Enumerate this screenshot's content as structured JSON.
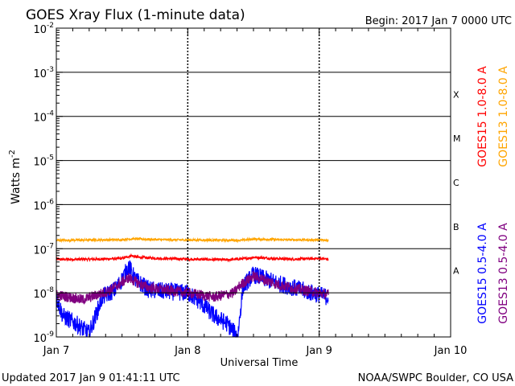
{
  "chart_data": {
    "type": "line",
    "title": "GOES Xray Flux (1-minute data)",
    "begin_label": "Begin:  2017 Jan 7 0000 UTC",
    "xlabel": "Universal Time",
    "ylabel": "Watts m",
    "ylabel_exp": "-2",
    "yscale": "log",
    "ylim_exp": [
      -9,
      -2
    ],
    "xlim_days": [
      0,
      3
    ],
    "x_ticks": [
      {
        "day": 0,
        "label": "Jan 7"
      },
      {
        "day": 1,
        "label": "Jan 8"
      },
      {
        "day": 2,
        "label": "Jan 9"
      },
      {
        "day": 3,
        "label": "Jan 10"
      }
    ],
    "y_ticks": [
      {
        "exp": -2,
        "label": "10",
        "sup": "-2"
      },
      {
        "exp": -3,
        "label": "10",
        "sup": "-3"
      },
      {
        "exp": -4,
        "label": "10",
        "sup": "-4"
      },
      {
        "exp": -5,
        "label": "10",
        "sup": "-5"
      },
      {
        "exp": -6,
        "label": "10",
        "sup": "-6"
      },
      {
        "exp": -7,
        "label": "10",
        "sup": "-7"
      },
      {
        "exp": -8,
        "label": "10",
        "sup": "-8"
      },
      {
        "exp": -9,
        "label": "10",
        "sup": "-9"
      }
    ],
    "flare_classes": [
      {
        "label": "X",
        "exp": -3.5
      },
      {
        "label": "M",
        "exp": -4.5
      },
      {
        "label": "C",
        "exp": -5.5
      },
      {
        "label": "B",
        "exp": -6.5
      },
      {
        "label": "A",
        "exp": -7.5
      }
    ],
    "series": [
      {
        "name": "GOES15 1.0-8.0 A",
        "color": "#ff0000",
        "noise": 0.03,
        "points": [
          [
            0,
            5.7e-08
          ],
          [
            0.3,
            5.8e-08
          ],
          [
            0.5,
            6e-08
          ],
          [
            0.57,
            7e-08
          ],
          [
            0.62,
            6.4e-08
          ],
          [
            0.8,
            6e-08
          ],
          [
            1.0,
            5.8e-08
          ],
          [
            1.3,
            5.6e-08
          ],
          [
            1.45,
            6e-08
          ],
          [
            1.5,
            6.4e-08
          ],
          [
            1.65,
            6e-08
          ],
          [
            1.8,
            5.8e-08
          ],
          [
            2.0,
            6e-08
          ],
          [
            2.07,
            5.8e-08
          ]
        ]
      },
      {
        "name": "GOES13 1.0-8.0 A",
        "color": "#ffa500",
        "noise": 0.025,
        "points": [
          [
            0,
            1.55e-07
          ],
          [
            0.5,
            1.6e-07
          ],
          [
            0.58,
            1.68e-07
          ],
          [
            0.8,
            1.6e-07
          ],
          [
            1.0,
            1.58e-07
          ],
          [
            1.4,
            1.55e-07
          ],
          [
            1.5,
            1.65e-07
          ],
          [
            1.7,
            1.6e-07
          ],
          [
            2.0,
            1.58e-07
          ],
          [
            2.07,
            1.55e-07
          ]
        ]
      },
      {
        "name": "GOES15 0.5-4.0 A",
        "color": "#0000ff",
        "noise": 0.2,
        "points": [
          [
            0,
            8e-09
          ],
          [
            0.05,
            3e-09
          ],
          [
            0.15,
            2e-09
          ],
          [
            0.25,
            1.2e-09
          ],
          [
            0.35,
            8e-09
          ],
          [
            0.45,
            1.2e-08
          ],
          [
            0.5,
            2e-08
          ],
          [
            0.55,
            4e-08
          ],
          [
            0.6,
            2e-08
          ],
          [
            0.7,
            1.2e-08
          ],
          [
            0.8,
            1.1e-08
          ],
          [
            1.0,
            1e-08
          ],
          [
            1.1,
            6e-09
          ],
          [
            1.2,
            3e-09
          ],
          [
            1.3,
            2e-09
          ],
          [
            1.38,
            1e-09
          ],
          [
            1.42,
            1.4e-08
          ],
          [
            1.5,
            2.6e-08
          ],
          [
            1.6,
            2e-08
          ],
          [
            1.7,
            1.6e-08
          ],
          [
            1.85,
            1.2e-08
          ],
          [
            2.0,
            9e-09
          ],
          [
            2.07,
            8e-09
          ]
        ]
      },
      {
        "name": "GOES13 0.5-4.0 A",
        "color": "#800080",
        "noise": 0.12,
        "points": [
          [
            0,
            9e-09
          ],
          [
            0.2,
            7e-09
          ],
          [
            0.4,
            1.1e-08
          ],
          [
            0.55,
            2.2e-08
          ],
          [
            0.6,
            1.8e-08
          ],
          [
            0.7,
            1.3e-08
          ],
          [
            1.0,
            1e-08
          ],
          [
            1.2,
            8e-09
          ],
          [
            1.35,
            1e-08
          ],
          [
            1.4,
            1.5e-08
          ],
          [
            1.5,
            2.4e-08
          ],
          [
            1.6,
            1.9e-08
          ],
          [
            1.7,
            1.5e-08
          ],
          [
            1.85,
            1.2e-08
          ],
          [
            2.0,
            1e-08
          ],
          [
            2.07,
            9e-09
          ]
        ]
      }
    ],
    "legend": [
      {
        "label": "GOES15 1.0-8.0 A",
        "color": "#ff0000"
      },
      {
        "label": "GOES13 1.0-8.0 A",
        "color": "#ffa500"
      },
      {
        "label": "GOES15 0.5-4.0 A",
        "color": "#0000ff"
      },
      {
        "label": "GOES13 0.5-4.0 A",
        "color": "#800080"
      }
    ]
  },
  "footer": {
    "updated": "Updated 2017 Jan  9 01:41:11 UTC",
    "credit": "NOAA/SWPC Boulder, CO USA"
  }
}
